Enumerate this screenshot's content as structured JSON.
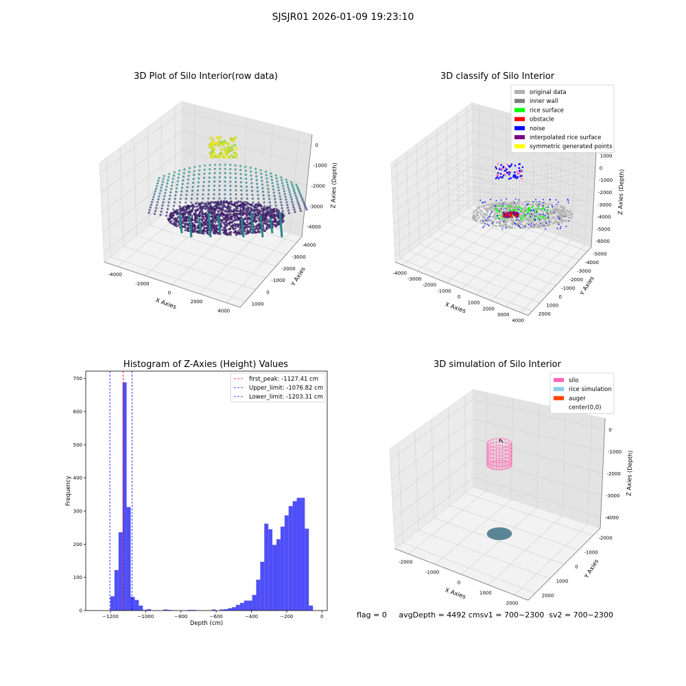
{
  "suptitle": "SJSJR01 2026-01-09 19:23:10",
  "status": {
    "flag": "flag = 0",
    "avg": "avgDepth = 4492 cm",
    "sv1": "sv1 = 700~2300",
    "sv2": "sv2 = 700~2300"
  },
  "chart_data": [
    {
      "type": "scatter3d",
      "title": "3D Plot of Silo Interior(row data)",
      "xlabel": "X Axies",
      "ylabel": "Y Axies",
      "zlabel": "Z Axies (Depth)",
      "xticks": [
        "-4000",
        "-2000",
        "0",
        "2000",
        "4000"
      ],
      "yticks": [
        "1000",
        "0",
        "-1000",
        "-2000",
        "-3000",
        "-4000"
      ],
      "zticks": [
        "0",
        "-1000",
        "-2000",
        "-3000",
        "-4000"
      ],
      "colormap": "viridis"
    },
    {
      "type": "scatter3d",
      "title": "3D classify of Silo Interior",
      "xlabel": "X Axies",
      "ylabel": "Y Axies",
      "zlabel": "Z Axies (Depth)",
      "xticks": [
        "-4000",
        "-3000",
        "-2000",
        "-1000",
        "0",
        "1000",
        "2000",
        "3000",
        "4000"
      ],
      "yticks": [
        "2000",
        "1000",
        "0",
        "-1000",
        "-2000",
        "-3000",
        "-4000",
        "-5000"
      ],
      "zticks": [
        "2000",
        "1000",
        "0",
        "-1000",
        "-2000",
        "-3000",
        "-4000",
        "-5000",
        "-6000"
      ],
      "legend": [
        {
          "label": "original data",
          "color": "#b0b0b0"
        },
        {
          "label": "inner wall",
          "color": "#808080"
        },
        {
          "label": "rice surface",
          "color": "#00ff00"
        },
        {
          "label": "obstacle",
          "color": "#ff0000"
        },
        {
          "label": "noise",
          "color": "#0000ff"
        },
        {
          "label": "interpolated rice surface",
          "color": "#800080"
        },
        {
          "label": "symmetric generated points",
          "color": "#ffff00"
        }
      ]
    },
    {
      "type": "bar",
      "title": "Histogram of Z-Axies (Height) Values",
      "xlabel": "Depth (cm)",
      "ylabel": "Frequency",
      "xlim": [
        -1340,
        30
      ],
      "ylim": [
        0,
        722
      ],
      "xticks": [
        -1200,
        -1000,
        -800,
        -600,
        -400,
        -200,
        0
      ],
      "yticks": [
        0,
        100,
        200,
        300,
        400,
        500,
        600,
        700
      ],
      "bin_width": 23,
      "bar_color": "#4b4bf8",
      "bins": [
        [
          -1200,
          43
        ],
        [
          -1177,
          122
        ],
        [
          -1154,
          236
        ],
        [
          -1131,
          688
        ],
        [
          -1108,
          312
        ],
        [
          -1085,
          41
        ],
        [
          -1062,
          32
        ],
        [
          -1039,
          15
        ],
        [
          -1016,
          2
        ],
        [
          -993,
          4
        ],
        [
          -900,
          3
        ],
        [
          -878,
          2
        ],
        [
          -855,
          1
        ],
        [
          -763,
          2
        ],
        [
          -740,
          2
        ],
        [
          -717,
          1
        ],
        [
          -625,
          3
        ],
        [
          -580,
          3
        ],
        [
          -557,
          4
        ],
        [
          -534,
          7
        ],
        [
          -511,
          10
        ],
        [
          -488,
          17
        ],
        [
          -465,
          23
        ],
        [
          -442,
          30
        ],
        [
          -419,
          30
        ],
        [
          -396,
          47
        ],
        [
          -373,
          93
        ],
        [
          -350,
          147
        ],
        [
          -327,
          262
        ],
        [
          -304,
          245
        ],
        [
          -281,
          198
        ],
        [
          -258,
          215
        ],
        [
          -235,
          253
        ],
        [
          -212,
          287
        ],
        [
          -189,
          315
        ],
        [
          -166,
          330
        ],
        [
          -143,
          340
        ],
        [
          -120,
          340
        ],
        [
          -97,
          247
        ],
        [
          -74,
          15
        ]
      ],
      "vlines": [
        {
          "x": -1127.41,
          "color": "#ff0000",
          "label": "first_peak: -1127.41 cm"
        },
        {
          "x": -1076.82,
          "color": "#0000ff",
          "label": "Upper_limit: -1076.82 cm"
        },
        {
          "x": -1203.31,
          "color": "#0000ff",
          "label": "Lower_limit: -1203.31 cm"
        }
      ]
    },
    {
      "type": "scatter3d",
      "title": "3D simulation of Silo Interior",
      "xlabel": "X Axies",
      "ylabel": "Y Axies",
      "zlabel": "Z Axies (Depth)",
      "xticks": [
        "-2000",
        "-1000",
        "0",
        "1000",
        "2000"
      ],
      "yticks": [
        "2000",
        "1000",
        "0",
        "-1000",
        "-2000"
      ],
      "zticks": [
        "0",
        "-1000",
        "-2000",
        "-3000",
        "-4000"
      ],
      "legend": [
        {
          "label": "silo",
          "color": "#ff69b4"
        },
        {
          "label": "rice simulation",
          "color": "#87ceeb"
        },
        {
          "label": "auger",
          "color": "#ff4500"
        },
        {
          "label": "center(0,0)",
          "color": ""
        }
      ]
    }
  ]
}
